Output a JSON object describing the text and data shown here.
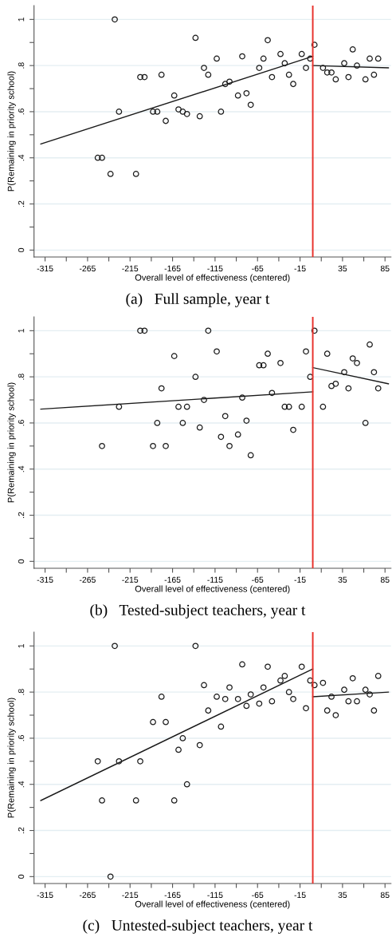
{
  "chart_data": [
    {
      "type": "scatter",
      "title": "(a)   Full sample, year t",
      "xlabel": "Overall level of effectiveness (centered)",
      "ylabel": "P(Remaining in priority school)",
      "xlim": [
        -328,
        92
      ],
      "ylim": [
        -0.03,
        1.06
      ],
      "xticks": [
        -315,
        {
          "value": -290,
          "label": null
        },
        -265,
        {
          "value": -240,
          "label": null
        },
        -215,
        {
          "value": -190,
          "label": null
        },
        -165,
        {
          "value": -140,
          "label": null
        },
        -115,
        {
          "value": -90,
          "label": null
        },
        -65,
        {
          "value": -40,
          "label": null
        },
        -15,
        {
          "value": 10,
          "label": null
        },
        35,
        {
          "value": 60,
          "label": null
        },
        85
      ],
      "yticks": [
        {
          "value": 0,
          "label": "0"
        },
        {
          "value": 0.1,
          "label": null
        },
        {
          "value": 0.2,
          "label": ".2"
        },
        {
          "value": 0.3,
          "label": null
        },
        {
          "value": 0.4,
          "label": ".4"
        },
        {
          "value": 0.5,
          "label": null
        },
        {
          "value": 0.6,
          "label": ".6"
        },
        {
          "value": 0.7,
          "label": null
        },
        {
          "value": 0.8,
          "label": ".8"
        },
        {
          "value": 0.9,
          "label": null
        },
        {
          "value": 1,
          "label": "1"
        }
      ],
      "grid": "y",
      "ref_lines": [
        {
          "axis": "x",
          "value": 0,
          "color": "#e8302a"
        }
      ],
      "series": [
        {
          "marker": "circle",
          "color": "#1a1a1a",
          "x": [
            -233,
            -228,
            -253,
            -248,
            -238,
            -208,
            -203,
            -198,
            -178,
            -188,
            -183,
            -173,
            -163,
            -158,
            -153,
            -148,
            -138,
            -133,
            -128,
            -123,
            -113,
            -108,
            -103,
            -98,
            -88,
            -83,
            -78,
            -73,
            -63,
            -58,
            -53,
            -48,
            -38,
            -33,
            -28,
            -23,
            -13,
            -8,
            -3,
            2,
            12,
            17,
            22,
            27,
            37,
            42,
            47,
            52,
            62,
            67,
            72,
            77
          ],
          "values": [
            1.0,
            0.6,
            0.4,
            0.4,
            0.33,
            0.33,
            0.75,
            0.75,
            0.76,
            0.6,
            0.6,
            0.56,
            0.67,
            0.61,
            0.6,
            0.59,
            0.92,
            0.58,
            0.79,
            0.76,
            0.83,
            0.6,
            0.72,
            0.73,
            0.67,
            0.84,
            0.68,
            0.63,
            0.79,
            0.83,
            0.91,
            0.75,
            0.85,
            0.81,
            0.76,
            0.72,
            0.85,
            0.79,
            0.83,
            0.89,
            0.79,
            0.77,
            0.77,
            0.74,
            0.81,
            0.75,
            0.87,
            0.8,
            0.74,
            0.83,
            0.76,
            0.83
          ]
        },
        {
          "type": "line",
          "marker": "none",
          "color": "#1a1a1a",
          "x": [
            -320,
            0
          ],
          "values": [
            0.46,
            0.84
          ]
        },
        {
          "type": "line",
          "marker": "none",
          "color": "#1a1a1a",
          "x": [
            0,
            89
          ],
          "values": [
            0.8,
            0.79
          ]
        }
      ]
    },
    {
      "type": "scatter",
      "title": "(b)   Tested-subject teachers, year t",
      "xlabel": "Overall level of effectiveness (centered)",
      "ylabel": "P(Remaining in priority school)",
      "xlim": [
        -328,
        92
      ],
      "ylim": [
        -0.03,
        1.06
      ],
      "xticks": [
        -315,
        {
          "value": -290,
          "label": null
        },
        -265,
        {
          "value": -240,
          "label": null
        },
        -215,
        {
          "value": -190,
          "label": null
        },
        -165,
        {
          "value": -140,
          "label": null
        },
        -115,
        {
          "value": -90,
          "label": null
        },
        -65,
        {
          "value": -40,
          "label": null
        },
        -15,
        {
          "value": 10,
          "label": null
        },
        35,
        {
          "value": 60,
          "label": null
        },
        85
      ],
      "yticks": [
        {
          "value": 0,
          "label": "0"
        },
        {
          "value": 0.1,
          "label": null
        },
        {
          "value": 0.2,
          "label": ".2"
        },
        {
          "value": 0.3,
          "label": null
        },
        {
          "value": 0.4,
          "label": ".4"
        },
        {
          "value": 0.5,
          "label": null
        },
        {
          "value": 0.6,
          "label": ".6"
        },
        {
          "value": 0.7,
          "label": null
        },
        {
          "value": 0.8,
          "label": ".8"
        },
        {
          "value": 0.9,
          "label": null
        },
        {
          "value": 1,
          "label": "1"
        }
      ],
      "grid": "y",
      "ref_lines": [
        {
          "axis": "x",
          "value": 0,
          "color": "#e8302a"
        }
      ],
      "series": [
        {
          "marker": "circle",
          "color": "#1a1a1a",
          "x": [
            -248,
            -228,
            -203,
            -198,
            -188,
            -183,
            -178,
            -173,
            -163,
            -158,
            -153,
            -148,
            -138,
            -133,
            -123,
            -128,
            -113,
            -108,
            -103,
            -98,
            -88,
            -83,
            -78,
            -73,
            -63,
            -58,
            -53,
            -48,
            -38,
            -33,
            -28,
            -23,
            -13,
            -8,
            -3,
            2,
            12,
            17,
            22,
            27,
            37,
            42,
            47,
            52,
            62,
            67,
            72,
            77
          ],
          "values": [
            0.5,
            0.67,
            1.0,
            1.0,
            0.5,
            0.6,
            0.75,
            0.5,
            0.89,
            0.67,
            0.6,
            0.67,
            0.8,
            0.58,
            1.0,
            0.7,
            0.91,
            0.54,
            0.63,
            0.5,
            0.55,
            0.71,
            0.61,
            0.46,
            0.85,
            0.85,
            0.9,
            0.73,
            0.86,
            0.67,
            0.67,
            0.57,
            0.67,
            0.91,
            0.8,
            1.0,
            0.67,
            0.9,
            0.76,
            0.77,
            0.82,
            0.75,
            0.88,
            0.86,
            0.6,
            0.94,
            0.82,
            0.75
          ]
        },
        {
          "type": "line",
          "marker": "none",
          "color": "#1a1a1a",
          "x": [
            -320,
            0
          ],
          "values": [
            0.66,
            0.735
          ]
        },
        {
          "type": "line",
          "marker": "none",
          "color": "#1a1a1a",
          "x": [
            0,
            89
          ],
          "values": [
            0.84,
            0.77
          ]
        }
      ]
    },
    {
      "type": "scatter",
      "title": "(c)   Untested-subject teachers, year t",
      "xlabel": "Overall level of effectiveness (centered)",
      "ylabel": "P(Remaining in priority school)",
      "xlim": [
        -328,
        92
      ],
      "ylim": [
        -0.03,
        1.06
      ],
      "xticks": [
        -315,
        {
          "value": -290,
          "label": null
        },
        -265,
        {
          "value": -240,
          "label": null
        },
        -215,
        {
          "value": -190,
          "label": null
        },
        -165,
        {
          "value": -140,
          "label": null
        },
        -115,
        {
          "value": -90,
          "label": null
        },
        -65,
        {
          "value": -40,
          "label": null
        },
        -15,
        {
          "value": 10,
          "label": null
        },
        35,
        {
          "value": 60,
          "label": null
        },
        85
      ],
      "yticks": [
        {
          "value": 0,
          "label": "0"
        },
        {
          "value": 0.1,
          "label": null
        },
        {
          "value": 0.2,
          "label": ".2"
        },
        {
          "value": 0.3,
          "label": null
        },
        {
          "value": 0.4,
          "label": ".4"
        },
        {
          "value": 0.5,
          "label": null
        },
        {
          "value": 0.6,
          "label": ".6"
        },
        {
          "value": 0.7,
          "label": null
        },
        {
          "value": 0.8,
          "label": ".8"
        },
        {
          "value": 0.9,
          "label": null
        },
        {
          "value": 1,
          "label": "1"
        }
      ],
      "grid": "y",
      "ref_lines": [
        {
          "axis": "x",
          "value": 0,
          "color": "#e8302a"
        }
      ],
      "series": [
        {
          "marker": "circle",
          "color": "#1a1a1a",
          "x": [
            -233,
            -253,
            -248,
            -238,
            -228,
            -208,
            -203,
            -188,
            -178,
            -173,
            -163,
            -158,
            -153,
            -148,
            -138,
            -133,
            -128,
            -123,
            -113,
            -108,
            -103,
            -98,
            -88,
            -83,
            -78,
            -73,
            -63,
            -58,
            -53,
            -48,
            -38,
            -33,
            -28,
            -23,
            -13,
            -8,
            -3,
            2,
            12,
            17,
            22,
            27,
            37,
            42,
            47,
            52,
            62,
            67,
            72,
            77
          ],
          "values": [
            1.0,
            0.5,
            0.33,
            0.0,
            0.5,
            0.33,
            0.5,
            0.67,
            0.78,
            0.67,
            0.33,
            0.55,
            0.6,
            0.4,
            1.0,
            0.57,
            0.83,
            0.72,
            0.78,
            0.65,
            0.77,
            0.82,
            0.77,
            0.92,
            0.74,
            0.79,
            0.75,
            0.82,
            0.91,
            0.76,
            0.85,
            0.87,
            0.8,
            0.77,
            0.91,
            0.73,
            0.85,
            0.83,
            0.84,
            0.72,
            0.78,
            0.7,
            0.81,
            0.76,
            0.86,
            0.76,
            0.81,
            0.79,
            0.72,
            0.87
          ]
        },
        {
          "type": "line",
          "marker": "none",
          "color": "#1a1a1a",
          "x": [
            -320,
            0
          ],
          "values": [
            0.33,
            0.9
          ]
        },
        {
          "type": "line",
          "marker": "none",
          "color": "#1a1a1a",
          "x": [
            0,
            89
          ],
          "values": [
            0.78,
            0.8
          ]
        }
      ]
    }
  ]
}
